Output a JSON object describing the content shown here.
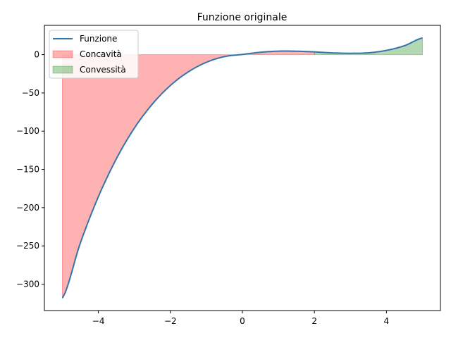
{
  "chart_data": {
    "type": "line",
    "title": "Funzione originale",
    "xlabel": "",
    "ylabel": "",
    "xlim": [
      -5.5,
      5.5
    ],
    "ylim": [
      -334.5,
      38.3
    ],
    "xticks": [
      -4,
      -2,
      0,
      2,
      4
    ],
    "xtick_labels": [
      "−4",
      "−2",
      "0",
      "2",
      "4"
    ],
    "yticks": [
      0,
      -50,
      -100,
      -150,
      -200,
      -250,
      -300
    ],
    "ytick_labels": [
      "0",
      "−50",
      "−100",
      "−150",
      "−200",
      "−250",
      "−300"
    ],
    "grid": false,
    "legend_position": "top-left",
    "series": [
      {
        "name": "Funzione",
        "kind": "line",
        "color": "#3274ab",
        "x": [
          -5,
          -4.5,
          -4,
          -3.5,
          -3,
          -2.5,
          -2,
          -1.5,
          -1,
          -0.5,
          0,
          0.5,
          1,
          1.5,
          2,
          2.5,
          3,
          3.5,
          4,
          4.5,
          5
        ],
        "y": [
          -318.2,
          -246.0,
          -185.7,
          -136.0,
          -96.0,
          -64.5,
          -40.3,
          -22.4,
          -10.0,
          -2.6,
          0.3,
          3.1,
          4.6,
          4.5,
          3.6,
          2.3,
          1.8,
          2.4,
          5.6,
          11.7,
          21.8
        ]
      },
      {
        "name": "Concavità",
        "kind": "fill",
        "color": "#ff0000",
        "opacity": 0.3,
        "x_range": [
          -5,
          2
        ],
        "baseline": 0
      },
      {
        "name": "Convessità",
        "kind": "fill",
        "color": "#008000",
        "opacity": 0.3,
        "x_range": [
          2,
          5
        ],
        "baseline": 0
      }
    ]
  }
}
